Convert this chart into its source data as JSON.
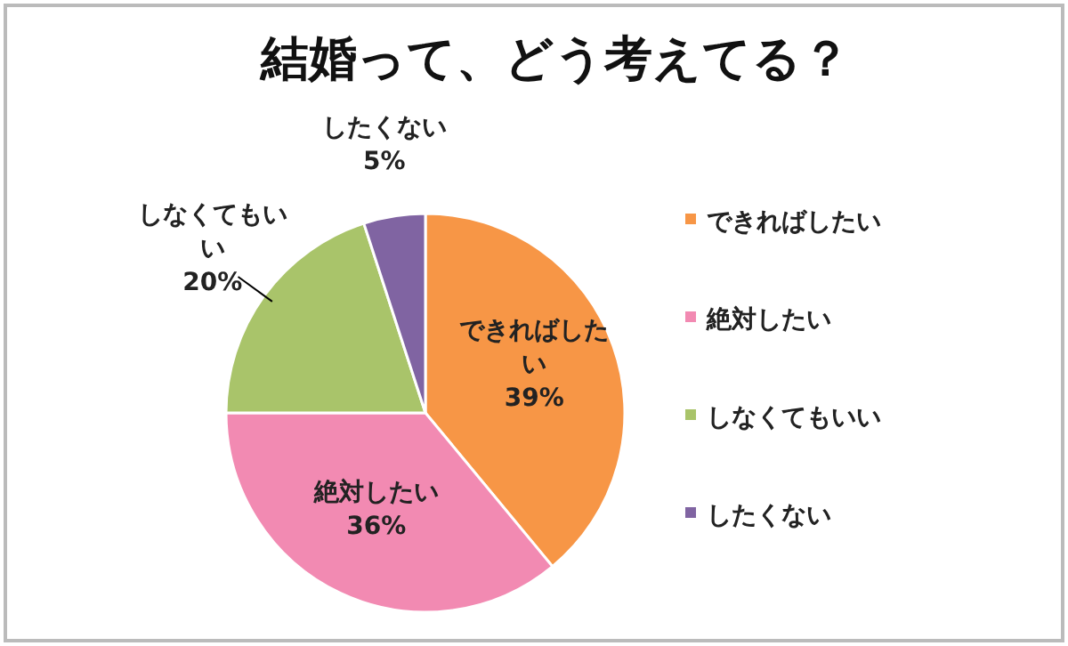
{
  "chart_data": {
    "type": "pie",
    "title": "結婚って、どう考えてる？",
    "categories": [
      "できればしたい",
      "絶対したい",
      "しなくてもいい",
      "したくない"
    ],
    "values": [
      39,
      36,
      20,
      5
    ],
    "colors": [
      "#f79646",
      "#f28ab2",
      "#a9c46a",
      "#8064a2"
    ],
    "value_labels": [
      "39%",
      "36%",
      "20%",
      "5%"
    ],
    "legend": "right"
  }
}
